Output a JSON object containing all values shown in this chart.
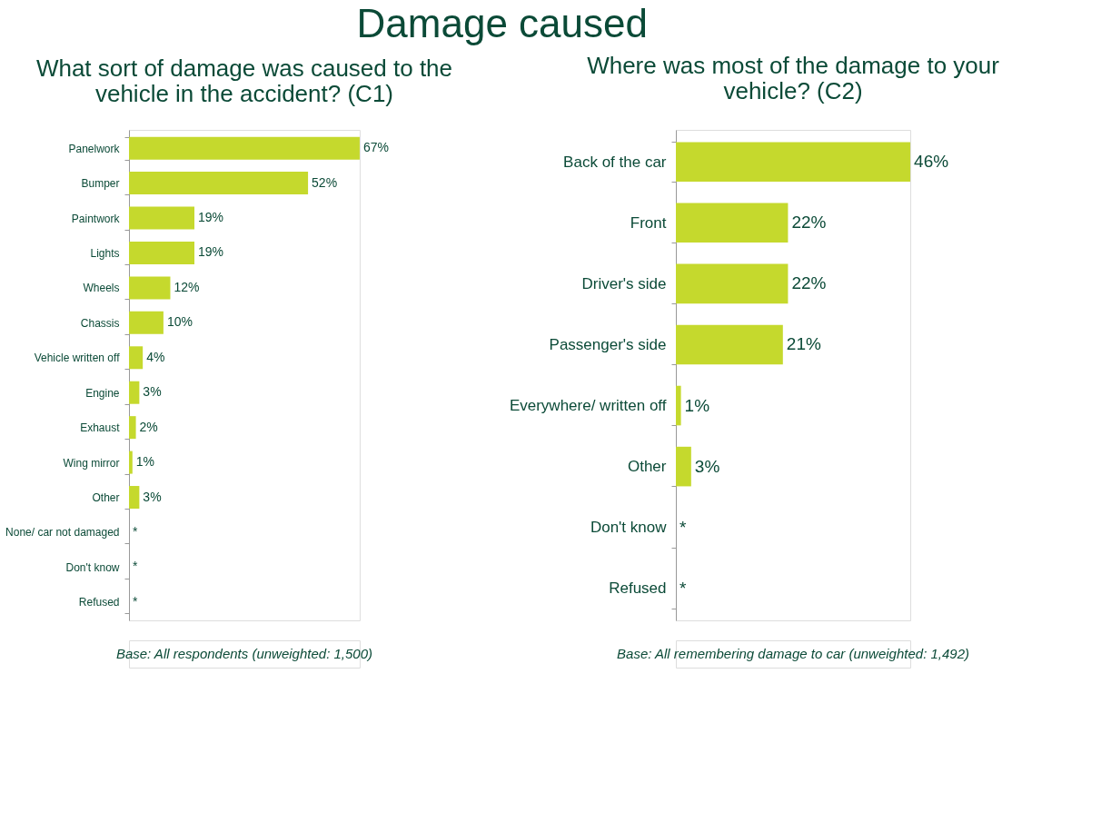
{
  "chart_data": [
    {
      "type": "bar",
      "orientation": "horizontal",
      "title": "Damage caused",
      "subtitle": "What sort of damage was caused to the vehicle in the accident? (C1)",
      "categories": [
        "Panelwork",
        "Bumper",
        "Paintwork",
        "Lights",
        "Wheels",
        "Chassis",
        "Vehicle written off",
        "Engine",
        "Exhaust",
        "Wing mirror",
        "Other",
        "None/ car not damaged",
        "Don't know",
        "Refused"
      ],
      "values": [
        67,
        52,
        19,
        19,
        12,
        10,
        4,
        3,
        2,
        1,
        3,
        null,
        null,
        null
      ],
      "value_labels": [
        "67%",
        "52%",
        "19%",
        "19%",
        "12%",
        "10%",
        "4%",
        "3%",
        "2%",
        "1%",
        "3%",
        "*",
        "*",
        "*"
      ],
      "color": "#c5d92d",
      "annotations": [
        "Base: All respondents (unweighted: 1,500)"
      ]
    },
    {
      "type": "bar",
      "orientation": "horizontal",
      "subtitle": "Where was most of the damage to your vehicle? (C2)",
      "categories": [
        "Back of the car",
        "Front",
        "Driver's side",
        "Passenger's side",
        "Everywhere/ written off",
        "Other",
        "Don't know",
        "Refused"
      ],
      "values": [
        46,
        22,
        22,
        21,
        1,
        3,
        null,
        null
      ],
      "value_labels": [
        "46%",
        "22%",
        "22%",
        "21%",
        "1%",
        "3%",
        "*",
        "*"
      ],
      "color": "#c5d92d",
      "annotations": [
        "Base: All remembering damage to car (unweighted: 1,492)"
      ]
    }
  ]
}
